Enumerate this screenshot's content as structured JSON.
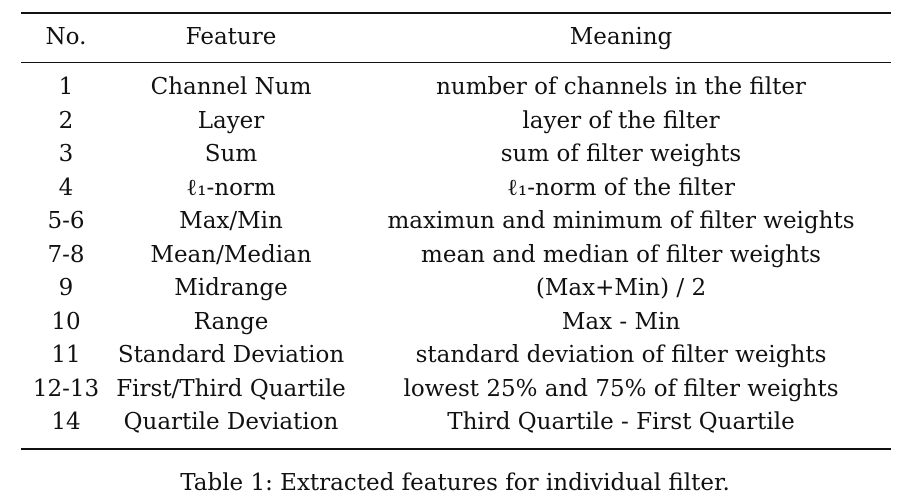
{
  "table": {
    "headers": [
      "No.",
      "Feature",
      "Meaning"
    ],
    "rows": [
      [
        "1",
        "Channel Num",
        "number of channels in the filter"
      ],
      [
        "2",
        "Layer",
        "layer of the filter"
      ],
      [
        "3",
        "Sum",
        "sum of filter weights"
      ],
      [
        "4",
        "ℓ₁-norm",
        "ℓ₁-norm of the filter"
      ],
      [
        "5-6",
        "Max/Min",
        "maximun and minimum of filter weights"
      ],
      [
        "7-8",
        "Mean/Median",
        "mean and median of filter weights"
      ],
      [
        "9",
        "Midrange",
        "(Max+Min) / 2"
      ],
      [
        "10",
        "Range",
        "Max - Min"
      ],
      [
        "11",
        "Standard Deviation",
        "standard deviation of filter weights"
      ],
      [
        "12-13",
        "First/Third Quartile",
        "lowest 25% and 75% of filter weights"
      ],
      [
        "14",
        "Quartile Deviation",
        "Third Quartile - First Quartile"
      ]
    ]
  },
  "caption": "Table 1: Extracted features for individual filter."
}
